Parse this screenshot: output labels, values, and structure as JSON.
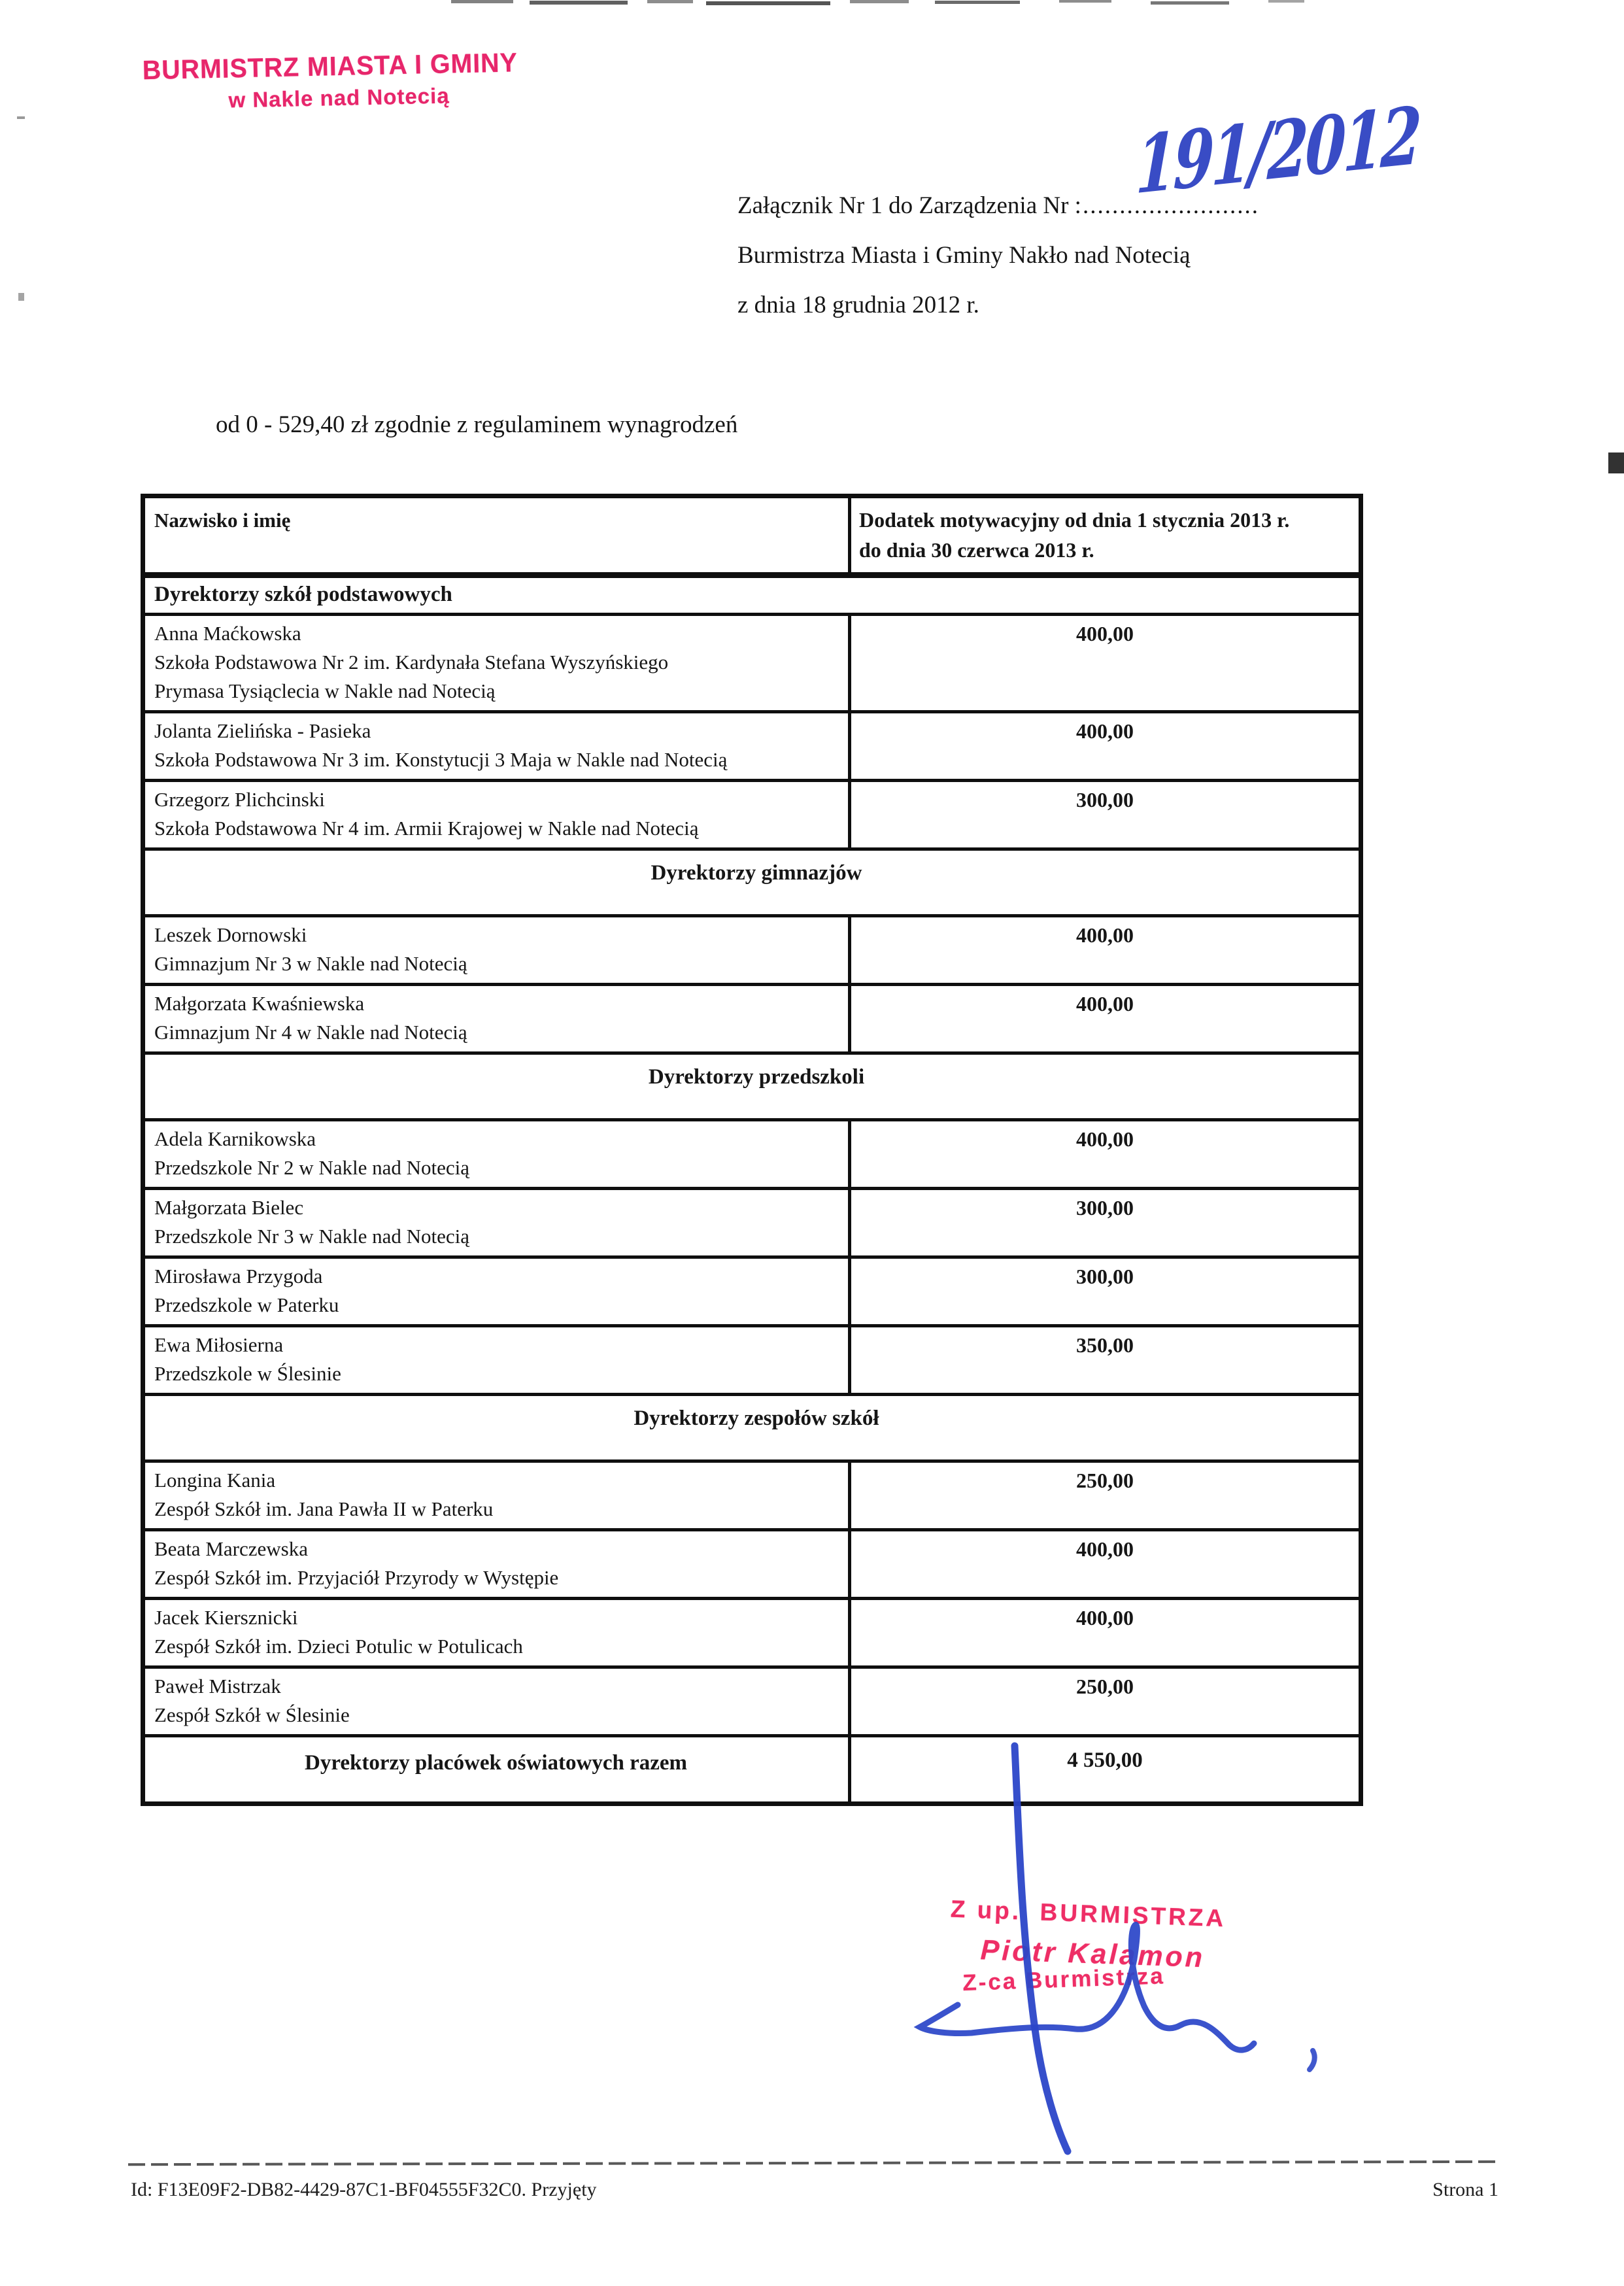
{
  "stamp_header": {
    "line1": "BURMISTRZ MIASTA I GMINY",
    "line2": "w Nakle nad Notecią",
    "color": "#e7266b"
  },
  "attachment_heading": {
    "line1_prefix": "Załącznik Nr 1 do Zarządzenia Nr ",
    "line1_dots": ":........................",
    "handwritten_number": "191/2012",
    "line2": "Burmistrza Miasta i Gminy Nakło nad Notecią",
    "line3": "z dnia 18 grudnia 2012 r."
  },
  "intro_line": "od 0 - 529,40 zł zgodnie z regulaminem wynagrodzeń",
  "table": {
    "header": {
      "col1": "Nazwisko i imię",
      "col2": "Dodatek motywacyjny od dnia 1 stycznia 2013 r.\ndo dnia 30 czerwca 2013 r."
    },
    "rows": [
      {
        "type": "section",
        "align": "left",
        "label": "Dyrektorzy szkół podstawowych"
      },
      {
        "type": "data",
        "name": "Anna Maćkowska\nSzkoła Podstawowa Nr 2 im. Kardynała Stefana Wyszyńskiego\nPrymasa Tysiąclecia w Nakle nad Notecią",
        "amount": "400,00"
      },
      {
        "type": "data",
        "name": "Jolanta Zielińska - Pasieka\nSzkoła Podstawowa Nr 3 im. Konstytucji 3 Maja w Nakle nad Notecią",
        "amount": "400,00"
      },
      {
        "type": "data",
        "name": "Grzegorz Plichcinski\nSzkoła Podstawowa Nr 4 im. Armii Krajowej w Nakle nad Notecią",
        "amount": "300,00"
      },
      {
        "type": "section",
        "align": "center",
        "label": "Dyrektorzy gimnazjów"
      },
      {
        "type": "data",
        "name": "Leszek Dornowski\nGimnazjum Nr 3 w Nakle nad Notecią",
        "amount": "400,00"
      },
      {
        "type": "data",
        "name": "Małgorzata Kwaśniewska\nGimnazjum Nr 4 w Nakle nad Notecią",
        "amount": "400,00"
      },
      {
        "type": "section",
        "align": "center",
        "label": "Dyrektorzy przedszkoli"
      },
      {
        "type": "data",
        "name": "Adela Karnikowska\nPrzedszkole Nr 2 w Nakle nad Notecią",
        "amount": "400,00"
      },
      {
        "type": "data",
        "name": "Małgorzata Bielec\nPrzedszkole Nr 3 w Nakle nad Notecią",
        "amount": "300,00"
      },
      {
        "type": "data",
        "name": "Mirosława Przygoda\nPrzedszkole w Paterku",
        "amount": "300,00"
      },
      {
        "type": "data",
        "name": "Ewa Miłosierna\nPrzedszkole w Ślesinie",
        "amount": "350,00"
      },
      {
        "type": "section",
        "align": "center",
        "label": "Dyrektorzy zespołów szkół"
      },
      {
        "type": "data",
        "name": "Longina Kania\nZespół Szkół im. Jana Pawła II w Paterku",
        "amount": "250,00"
      },
      {
        "type": "data",
        "name": "Beata Marczewska\nZespół Szkół im. Przyjaciół Przyrody w Występie",
        "amount": "400,00"
      },
      {
        "type": "data",
        "name": "Jacek Kiersznicki\nZespół Szkół im. Dzieci Potulic w Potulicach",
        "amount": "400,00"
      },
      {
        "type": "data",
        "name": "Paweł Mistrzak\nZespół Szkół w Ślesinie",
        "amount": "250,00"
      },
      {
        "type": "total",
        "label": "Dyrektorzy placówek oświatowych razem",
        "amount": "4 550,00"
      }
    ]
  },
  "signature": {
    "stamp_line1": "Z up.  BURMISTRZA",
    "stamp_line2": "Piotr Kalamon",
    "stamp_line3": "Z-ca Burmistrza",
    "stamp_color": "#ee2e66",
    "ink_color": "#2b46c8"
  },
  "footer": {
    "document_id": "Id: F13E09F2-DB82-4429-87C1-BF04555F32C0. Przyjęty",
    "page": "Strona 1"
  }
}
